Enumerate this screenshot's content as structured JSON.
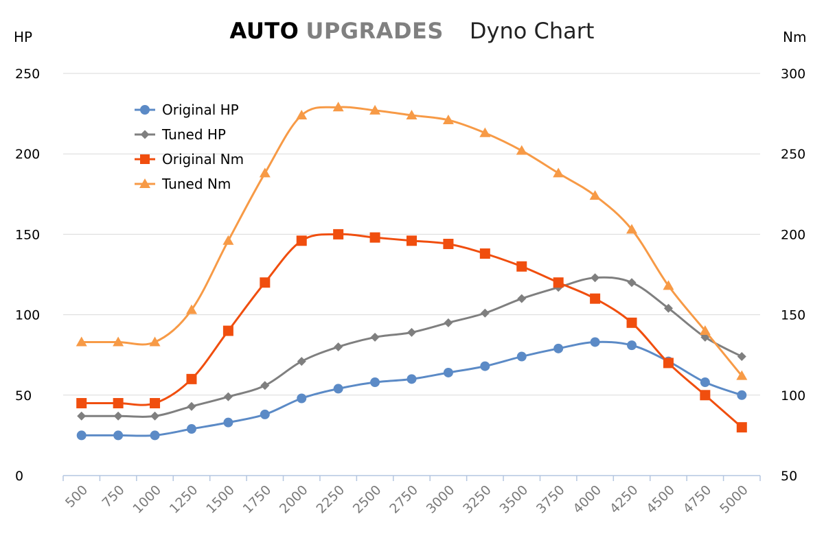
{
  "header": {
    "brand_part1": "AUTO",
    "brand_part2": "UPGRADES",
    "title": "Dyno Chart"
  },
  "chart_data": {
    "type": "line",
    "title": "Dyno Chart",
    "left_axis": {
      "label": "HP",
      "min": 0,
      "max": 250,
      "ticks": [
        0,
        50,
        100,
        150,
        200,
        250
      ]
    },
    "right_axis": {
      "label": "Nm",
      "min": 50,
      "max": 300,
      "ticks": [
        50,
        100,
        150,
        200,
        250,
        300
      ]
    },
    "x_categories": [
      "500",
      "750",
      "1000",
      "1250",
      "1500",
      "1750",
      "2000",
      "2250",
      "2500",
      "2750",
      "3000",
      "3250",
      "3500",
      "3750",
      "4000",
      "4250",
      "4500",
      "4750",
      "5000"
    ],
    "grid": true,
    "legend_position": "top-left",
    "series": [
      {
        "name": "Original HP",
        "axis": "left",
        "color": "#5b8ac6",
        "marker": "circle",
        "values": [
          25,
          25,
          25,
          29,
          33,
          38,
          48,
          54,
          58,
          60,
          64,
          68,
          74,
          79,
          83,
          81,
          71,
          58,
          50
        ]
      },
      {
        "name": "Tuned HP",
        "axis": "left",
        "color": "#7f7f7f",
        "marker": "diamond",
        "values": [
          37,
          37,
          37,
          43,
          49,
          56,
          71,
          80,
          86,
          89,
          95,
          101,
          110,
          117,
          123,
          120,
          104,
          86,
          74
        ]
      },
      {
        "name": "Original Nm",
        "axis": "right",
        "color": "#f04e0e",
        "marker": "square",
        "values": [
          95,
          95,
          95,
          110,
          140,
          170,
          196,
          200,
          198,
          196,
          194,
          188,
          180,
          170,
          160,
          145,
          120,
          100,
          80
        ]
      },
      {
        "name": "Tuned Nm",
        "axis": "right",
        "color": "#f79a46",
        "marker": "triangle",
        "values": [
          133,
          133,
          133,
          153,
          196,
          238,
          274,
          279,
          277,
          274,
          271,
          263,
          252,
          238,
          224,
          203,
          168,
          140,
          112
        ]
      }
    ]
  }
}
